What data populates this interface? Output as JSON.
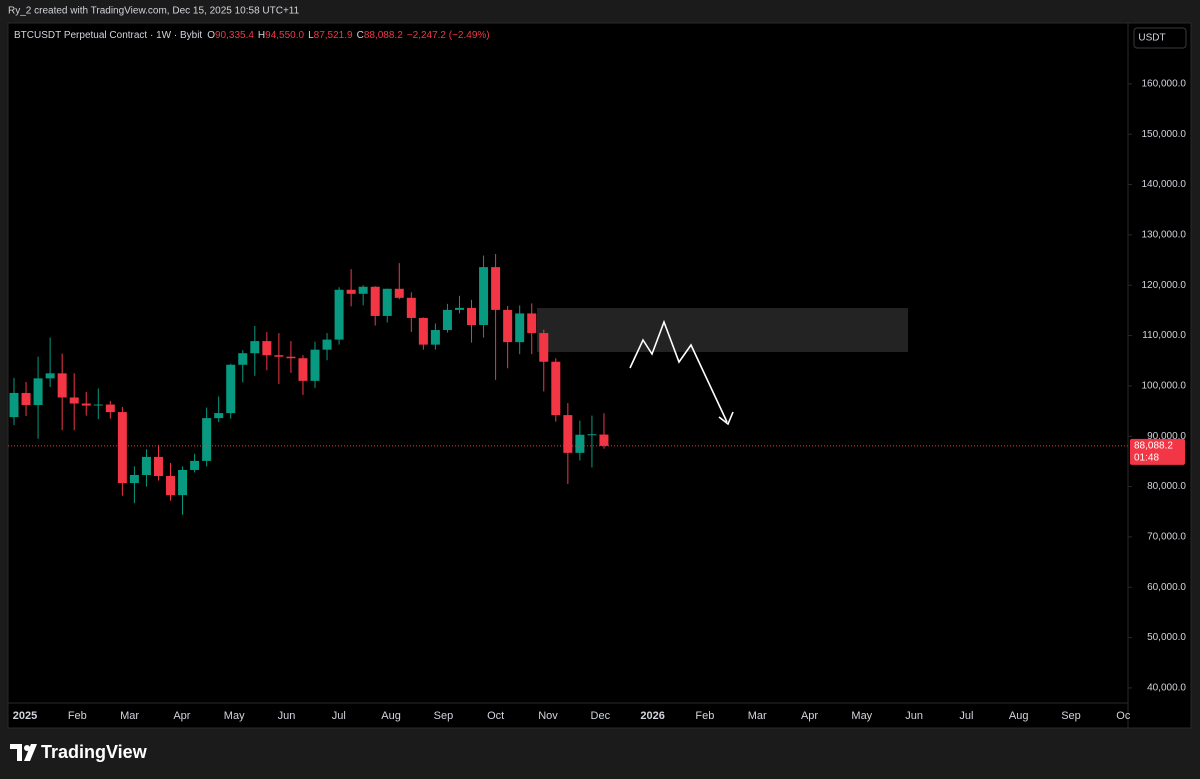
{
  "header": {
    "caption": "Ry_2 created with TradingView.com, Dec 15, 2025 10:58 UTC+11",
    "currency": "USDT"
  },
  "chart_data": {
    "type": "candlestick",
    "symbol": "BTCUSDT Perpetual Contract · 1W · Bybit",
    "ohlc_labels": [
      {
        "key": "O",
        "value": "90,335.4"
      },
      {
        "key": "H",
        "value": "94,550.0"
      },
      {
        "key": "L",
        "value": "87,521.9"
      },
      {
        "key": "C",
        "value": "88,088.2"
      }
    ],
    "change": "−2,247.2 (−2.49%)",
    "last_price_label": "88,088.2",
    "countdown": "01:48",
    "up_color": "#089981",
    "down_color": "#f23645",
    "x_labels": [
      "2025",
      "Feb",
      "Mar",
      "Apr",
      "May",
      "Jun",
      "Jul",
      "Aug",
      "Sep",
      "Oct",
      "Nov",
      "Dec",
      "2026",
      "Feb",
      "Mar",
      "Apr",
      "May",
      "Jun",
      "Jul",
      "Aug",
      "Sep",
      "Oc"
    ],
    "candles": [
      {
        "o": 93800,
        "h": 101600,
        "l": 92200,
        "c": 98600
      },
      {
        "o": 98600,
        "h": 100800,
        "l": 94000,
        "c": 96200
      },
      {
        "o": 96200,
        "h": 105800,
        "l": 89500,
        "c": 101500
      },
      {
        "o": 101500,
        "h": 109600,
        "l": 99800,
        "c": 102500
      },
      {
        "o": 102500,
        "h": 106400,
        "l": 91200,
        "c": 97700
      },
      {
        "o": 97700,
        "h": 102500,
        "l": 91200,
        "c": 96500
      },
      {
        "o": 96500,
        "h": 98800,
        "l": 94100,
        "c": 96100
      },
      {
        "o": 96100,
        "h": 99500,
        "l": 93400,
        "c": 96300
      },
      {
        "o": 96300,
        "h": 97000,
        "l": 93500,
        "c": 94800
      },
      {
        "o": 94800,
        "h": 95800,
        "l": 78200,
        "c": 80700
      },
      {
        "o": 80700,
        "h": 84000,
        "l": 76700,
        "c": 82300
      },
      {
        "o": 82300,
        "h": 87400,
        "l": 80000,
        "c": 85900
      },
      {
        "o": 85900,
        "h": 88300,
        "l": 81200,
        "c": 82100
      },
      {
        "o": 82100,
        "h": 84700,
        "l": 77200,
        "c": 78300
      },
      {
        "o": 78300,
        "h": 84000,
        "l": 74400,
        "c": 83300
      },
      {
        "o": 83300,
        "h": 86500,
        "l": 82800,
        "c": 85100
      },
      {
        "o": 85100,
        "h": 95700,
        "l": 84000,
        "c": 93600
      },
      {
        "o": 93600,
        "h": 97900,
        "l": 92800,
        "c": 94600
      },
      {
        "o": 94600,
        "h": 104400,
        "l": 93500,
        "c": 104200
      },
      {
        "o": 104200,
        "h": 107100,
        "l": 100700,
        "c": 106500
      },
      {
        "o": 106500,
        "h": 111900,
        "l": 102000,
        "c": 108900
      },
      {
        "o": 108900,
        "h": 110700,
        "l": 103100,
        "c": 106100
      },
      {
        "o": 106100,
        "h": 110500,
        "l": 100400,
        "c": 105800
      },
      {
        "o": 105800,
        "h": 108900,
        "l": 102600,
        "c": 105500
      },
      {
        "o": 105500,
        "h": 106100,
        "l": 98200,
        "c": 101000
      },
      {
        "o": 101000,
        "h": 108800,
        "l": 99600,
        "c": 107200
      },
      {
        "o": 107200,
        "h": 110500,
        "l": 105100,
        "c": 109200
      },
      {
        "o": 109200,
        "h": 119600,
        "l": 108200,
        "c": 119100
      },
      {
        "o": 119100,
        "h": 123200,
        "l": 115800,
        "c": 118300
      },
      {
        "o": 118300,
        "h": 120000,
        "l": 116000,
        "c": 119700
      },
      {
        "o": 119700,
        "h": 119800,
        "l": 112000,
        "c": 113900
      },
      {
        "o": 113900,
        "h": 119300,
        "l": 112600,
        "c": 119300
      },
      {
        "o": 119300,
        "h": 124400,
        "l": 117200,
        "c": 117500
      },
      {
        "o": 117500,
        "h": 118600,
        "l": 110700,
        "c": 113500
      },
      {
        "o": 113500,
        "h": 113600,
        "l": 107200,
        "c": 108200
      },
      {
        "o": 108200,
        "h": 112400,
        "l": 107200,
        "c": 111100
      },
      {
        "o": 111100,
        "h": 116300,
        "l": 110600,
        "c": 115100
      },
      {
        "o": 115100,
        "h": 117900,
        "l": 114400,
        "c": 115500
      },
      {
        "o": 115500,
        "h": 117100,
        "l": 108600,
        "c": 112100
      },
      {
        "o": 112100,
        "h": 125900,
        "l": 109600,
        "c": 123600
      },
      {
        "o": 123600,
        "h": 126200,
        "l": 101200,
        "c": 115100
      },
      {
        "o": 115100,
        "h": 115900,
        "l": 103500,
        "c": 108700
      },
      {
        "o": 108700,
        "h": 116000,
        "l": 106300,
        "c": 114400
      },
      {
        "o": 114400,
        "h": 116400,
        "l": 106300,
        "c": 110500
      },
      {
        "o": 110500,
        "h": 111200,
        "l": 98900,
        "c": 104800
      },
      {
        "o": 104800,
        "h": 105500,
        "l": 92900,
        "c": 94200
      },
      {
        "o": 94200,
        "h": 96600,
        "l": 80500,
        "c": 86700
      },
      {
        "o": 86700,
        "h": 93100,
        "l": 85200,
        "c": 90300
      },
      {
        "o": 90300,
        "h": 94100,
        "l": 83800,
        "c": 90400
      },
      {
        "o": 90335.4,
        "h": 94550,
        "l": 87521.9,
        "c": 88088.2
      }
    ],
    "ylim": [
      37600,
      171900
    ],
    "yticks": [
      {
        "value": 40000,
        "label": "40,000.0"
      },
      {
        "value": 50000,
        "label": "50,000.0"
      },
      {
        "value": 60000,
        "label": "60,000.0"
      },
      {
        "value": 70000,
        "label": "70,000.0"
      },
      {
        "value": 80000,
        "label": "80,000.0"
      },
      {
        "value": 90000,
        "label": "90,000.0"
      },
      {
        "value": 100000,
        "label": "100,000.0"
      },
      {
        "value": 110000,
        "label": "110,000.0"
      },
      {
        "value": 120000,
        "label": "120,000.0"
      },
      {
        "value": 130000,
        "label": "130,000.0"
      },
      {
        "value": 140000,
        "label": "140,000.0"
      },
      {
        "value": 150000,
        "label": "150,000.0"
      },
      {
        "value": 160000,
        "label": "160,000.0"
      }
    ],
    "grid": false
  },
  "footer": {
    "brand": "TradingView"
  }
}
